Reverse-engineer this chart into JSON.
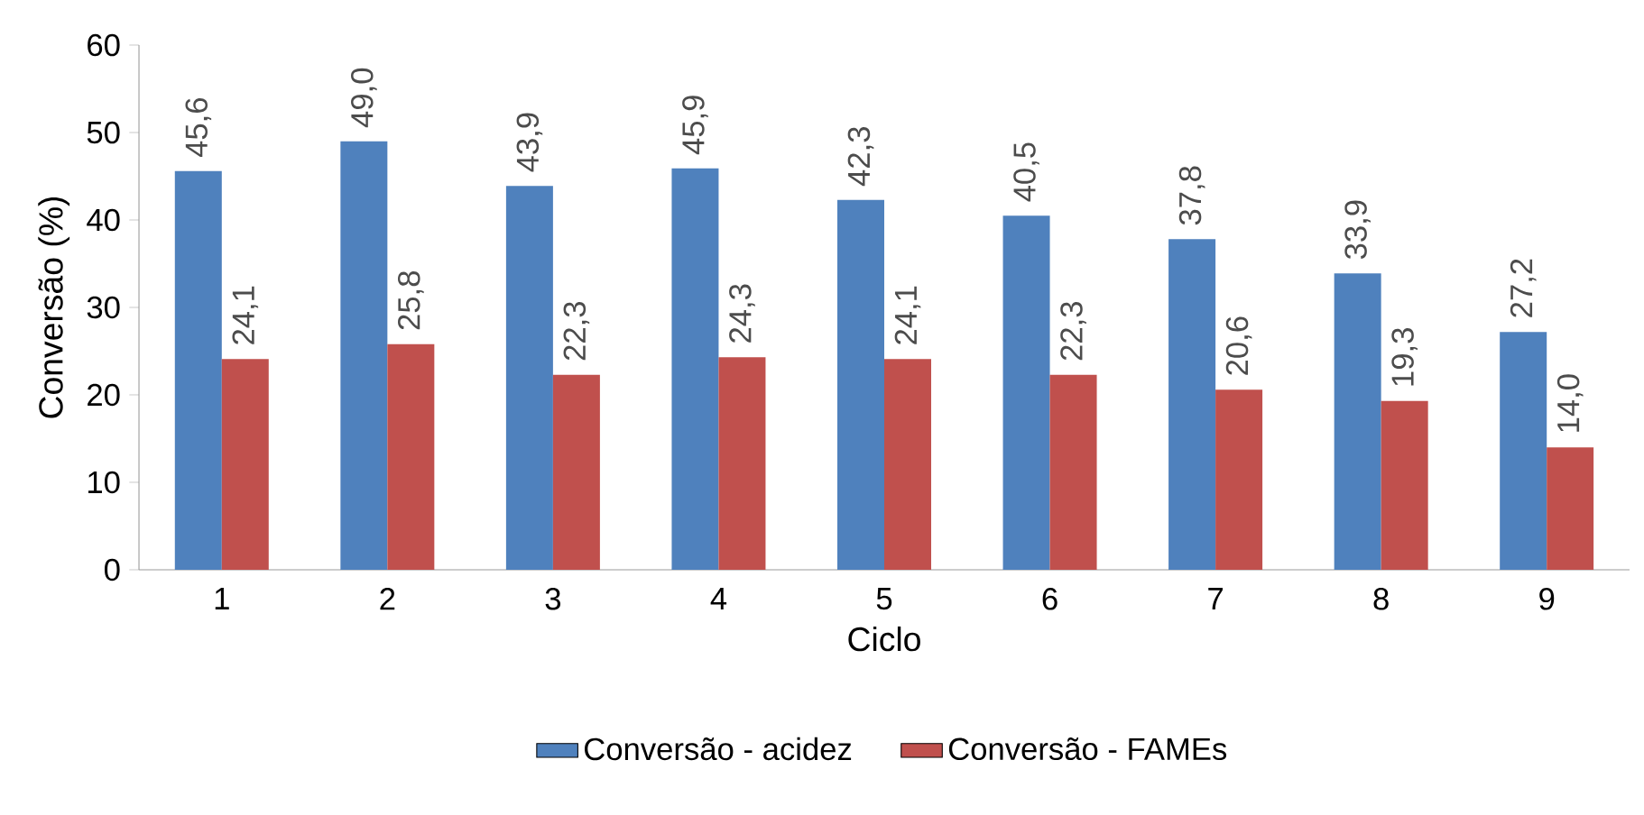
{
  "chart_data": {
    "type": "bar",
    "xlabel": "Ciclo",
    "ylabel": "Conversão (%)",
    "categories": [
      "1",
      "2",
      "3",
      "4",
      "5",
      "6",
      "7",
      "8",
      "9"
    ],
    "series": [
      {
        "name": "Conversão - acidez",
        "color": "#4f81bd",
        "values": [
          45.6,
          49.0,
          43.9,
          45.9,
          42.3,
          40.5,
          37.8,
          33.9,
          27.2
        ],
        "value_labels": [
          "45,6",
          "49,0",
          "43,9",
          "45,9",
          "42,3",
          "40,5",
          "37,8",
          "33,9",
          "27,2"
        ]
      },
      {
        "name": "Conversão - FAMEs",
        "color": "#c0504d",
        "values": [
          24.1,
          25.8,
          22.3,
          24.3,
          24.1,
          22.3,
          20.6,
          19.3,
          14.0
        ],
        "value_labels": [
          "24,1",
          "25,8",
          "22,3",
          "24,3",
          "24,1",
          "22,3",
          "20,6",
          "19,3",
          "14,0"
        ]
      }
    ],
    "ylim": [
      0,
      60
    ],
    "yticks": [
      0,
      10,
      20,
      30,
      40,
      50,
      60
    ],
    "grid": false,
    "legend": "bottom"
  }
}
